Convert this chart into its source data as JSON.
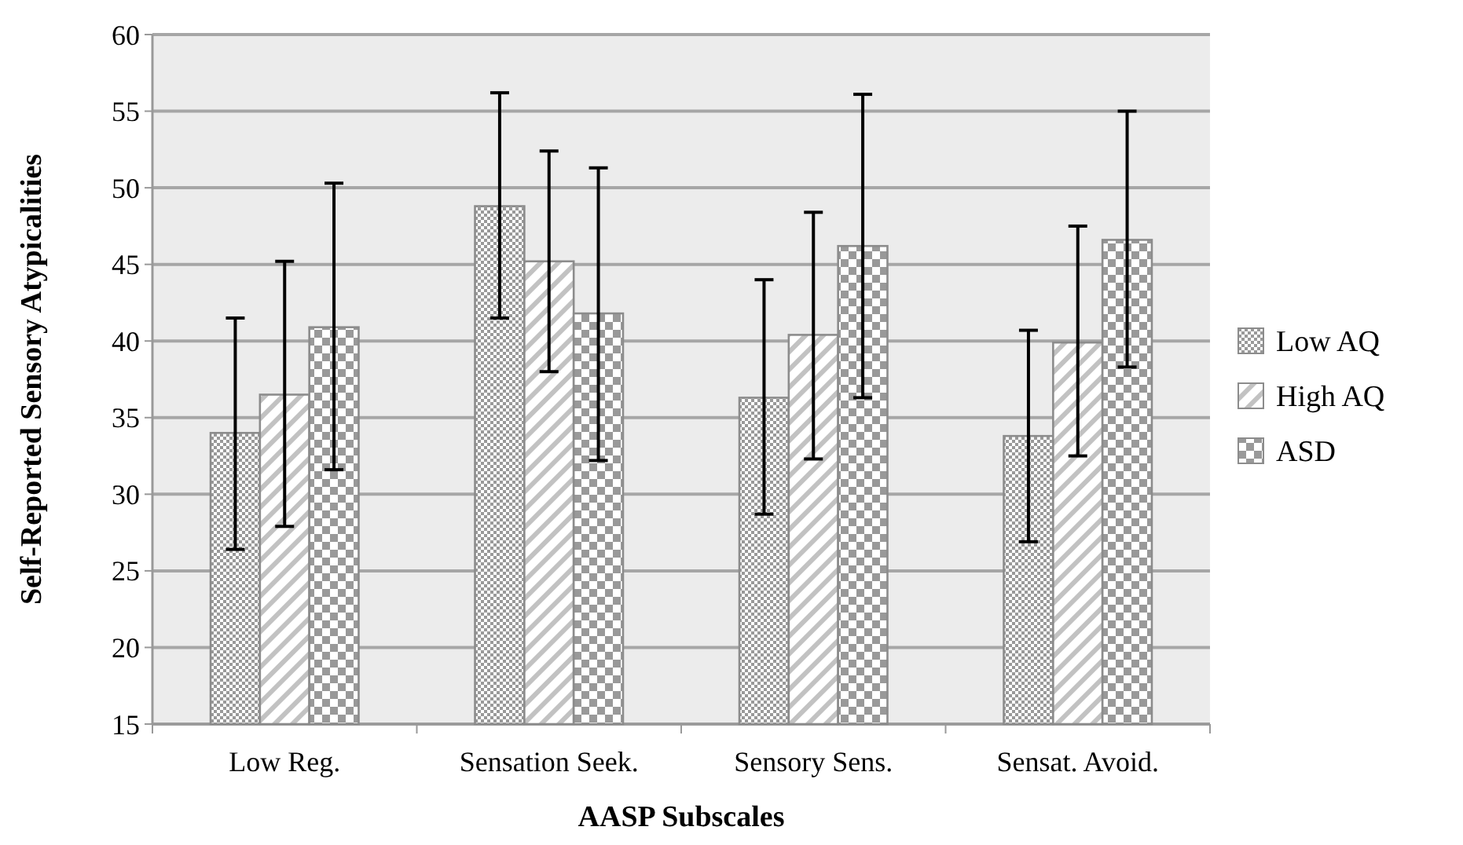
{
  "chart_data": {
    "type": "bar",
    "xlabel": "AASP Subscales",
    "ylabel": "Self-Reported Sensory Atypicalities",
    "categories": [
      "Low Reg.",
      "Sensation Seek.",
      "Sensory Sens.",
      "Sensat. Avoid."
    ],
    "series": [
      {
        "name": "Low AQ",
        "color": "#999999",
        "values": [
          34.0,
          48.8,
          36.3,
          33.8
        ],
        "errors": [
          [
            26.4,
            41.5
          ],
          [
            41.5,
            56.2
          ],
          [
            28.7,
            44.0
          ],
          [
            26.9,
            40.7
          ]
        ]
      },
      {
        "name": "High AQ",
        "color": "#999999",
        "values": [
          36.5,
          45.2,
          40.4,
          39.9
        ],
        "errors": [
          [
            27.9,
            45.2
          ],
          [
            38.0,
            52.4
          ],
          [
            32.3,
            48.4
          ],
          [
            32.5,
            47.5
          ]
        ]
      },
      {
        "name": "ASD",
        "color": "#999999",
        "values": [
          40.9,
          41.8,
          46.2,
          46.6
        ],
        "errors": [
          [
            31.6,
            50.3
          ],
          [
            32.2,
            51.3
          ],
          [
            36.3,
            56.1
          ],
          [
            38.3,
            55.0
          ]
        ]
      }
    ],
    "ylim": [
      15,
      60
    ],
    "yticks": [
      15,
      20,
      25,
      30,
      35,
      40,
      45,
      50,
      55,
      60
    ],
    "grid": "y",
    "legend": "right"
  }
}
